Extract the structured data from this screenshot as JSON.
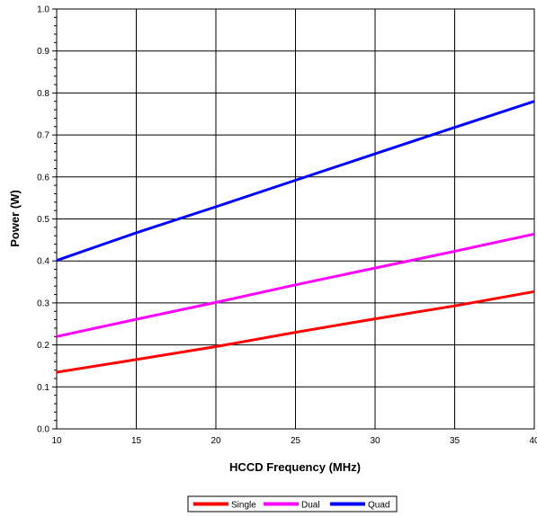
{
  "chart_data": {
    "type": "line",
    "title": "",
    "xlabel": "HCCD Frequency (MHz)",
    "ylabel": "Power (W)",
    "xlim": [
      10,
      40
    ],
    "ylim": [
      0.0,
      1.0
    ],
    "x_ticks": [
      "10",
      "15",
      "20",
      "25",
      "30",
      "35",
      "40"
    ],
    "y_ticks": [
      "0.0",
      "0.1",
      "0.2",
      "0.3",
      "0.4",
      "0.5",
      "0.6",
      "0.7",
      "0.8",
      "0.9",
      "1.0"
    ],
    "grid": true,
    "legend_position": "bottom",
    "series": [
      {
        "name": "Single",
        "color": "#ff0000",
        "x": [
          10,
          15,
          20,
          25,
          30,
          35,
          40
        ],
        "y": [
          0.135,
          0.165,
          0.196,
          0.23,
          0.262,
          0.293,
          0.327
        ]
      },
      {
        "name": "Dual",
        "color": "#ff00ff",
        "x": [
          10,
          15,
          20,
          25,
          30,
          35,
          40
        ],
        "y": [
          0.22,
          0.261,
          0.301,
          0.343,
          0.383,
          0.423,
          0.464
        ]
      },
      {
        "name": "Quad",
        "color": "#0000ff",
        "x": [
          10,
          15,
          20,
          25,
          30,
          35,
          40
        ],
        "y": [
          0.401,
          0.467,
          0.529,
          0.592,
          0.655,
          0.718,
          0.78
        ]
      }
    ]
  }
}
